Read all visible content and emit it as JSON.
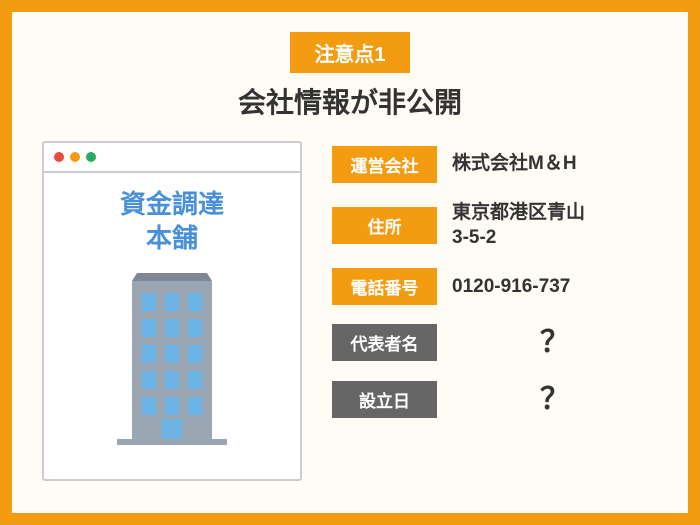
{
  "colors": {
    "frame_border": "#f39c12",
    "background": "#fffbf5",
    "badge_bg": "#f39c12",
    "badge_text": "#ffffff",
    "title_text": "#333333",
    "service_name_color": "#4a90d9",
    "label_known_bg": "#f39c12",
    "label_unknown_bg": "#666666",
    "value_text": "#333333",
    "dot_red": "#e74c3c",
    "dot_yellow": "#f39c12",
    "dot_green": "#27ae60",
    "building_fill": "#9aa6b2",
    "window_fill": "#6bb4e8"
  },
  "header": {
    "badge": "注意点1",
    "title": "会社情報が非公開"
  },
  "service_name_line1": "資金調達",
  "service_name_line2": "本舗",
  "info_rows": [
    {
      "label": "運営会社",
      "value": "株式会社M＆H",
      "known": true
    },
    {
      "label": "住所",
      "value": "東京都港区青山\n3-5-2",
      "known": true
    },
    {
      "label": "電話番号",
      "value": "0120-916-737",
      "known": true
    },
    {
      "label": "代表者名",
      "value": "？",
      "known": false
    },
    {
      "label": "設立日",
      "value": "？",
      "known": false
    }
  ]
}
